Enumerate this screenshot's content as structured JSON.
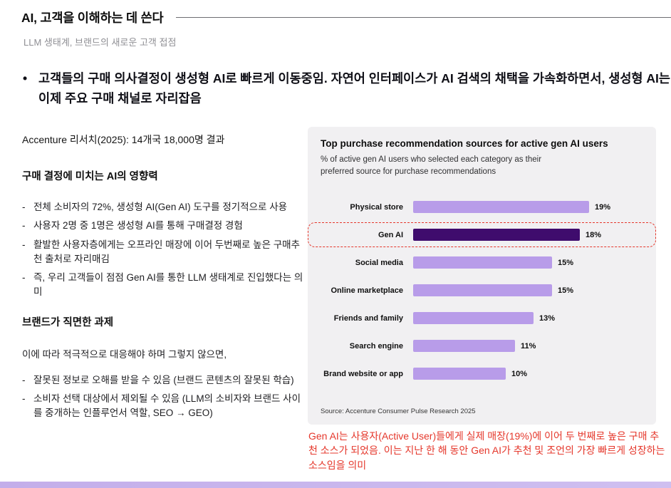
{
  "slide": {
    "title": "AI, 고객을 이해하는 데 쓴다",
    "subtitle": "LLM 생태계, 브랜드의 새로운 고객 접점",
    "key_message": "고객들의 구매 의사결정이 생성형 AI로 빠르게 이동중임. 자연어 인터페이스가 AI 검색의 채택을 가속화하면서, 생성형 AI는 이제 주요 구매 채널로 자리잡음"
  },
  "left_column": {
    "research_line": "Accenture 리서치(2025): 14개국 18,000명 결과",
    "section1_heading": "구매 결정에 미치는 AI의 영향력",
    "section1_items": [
      "전체 소비자의 72%, 생성형 AI(Gen AI) 도구를 정기적으로 사용",
      "사용자 2명 중 1명은 생성형 AI를 통해 구매결정 경험",
      "활발한 사용자층에게는 오프라인 매장에 이어 두번째로 높은 구매추천 출처로 자리매김",
      "즉, 우리 고객들이 점점 Gen AI를 통한 LLM 생태계로 진입했다는 의미"
    ],
    "section2_heading": "브랜드가 직면한 과제",
    "section2_intro": "이에 따라 적극적으로 대응해야 하며 그렇지 않으면,",
    "section2_items": [
      "잘못된 정보로 오해를 받을 수 있음 (브랜드 콘텐츠의 잘못된 학습)",
      "소비자 선택 대상에서 제외될 수 있음 (LLM의 소비자와 브랜드 사이를 중개하는 인플루언서 역할, SEO → GEO)"
    ]
  },
  "chart_data": {
    "type": "bar",
    "orientation": "horizontal",
    "title": "Top purchase recommendation sources for active gen AI users",
    "subtitle": "% of active gen AI users who selected each category as their preferred source for purchase recommendations",
    "categories": [
      "Physical store",
      "Gen AI",
      "Social media",
      "Online marketplace",
      "Friends and family",
      "Search engine",
      "Brand website or app"
    ],
    "values": [
      19,
      18,
      15,
      15,
      13,
      11,
      10
    ],
    "value_suffix": "%",
    "xlim": [
      0,
      20
    ],
    "highlighted_category": "Gen AI",
    "source": "Source: Accenture Consumer Pulse Research 2025",
    "legend": "none",
    "grid": "off",
    "colors": {
      "bar": "#b89ce9",
      "highlight_bar": "#3f0c6d",
      "highlight_outline": "#e5372b",
      "panel_bg": "#f1f0f2"
    }
  },
  "annotation": {
    "text": "Gen AI는 사용자(Active User)들에게 실제 매장(19%)에 이어 두 번째로 높은 구매 추천 소스가 되었음. 이는 지난 한 해 동안 Gen AI가 추천 및 조언의 가장 빠르게 성장하는 소스임을 의미",
    "color": "#e5372b"
  },
  "footer": {
    "accent_color": "#c8b6ed"
  }
}
